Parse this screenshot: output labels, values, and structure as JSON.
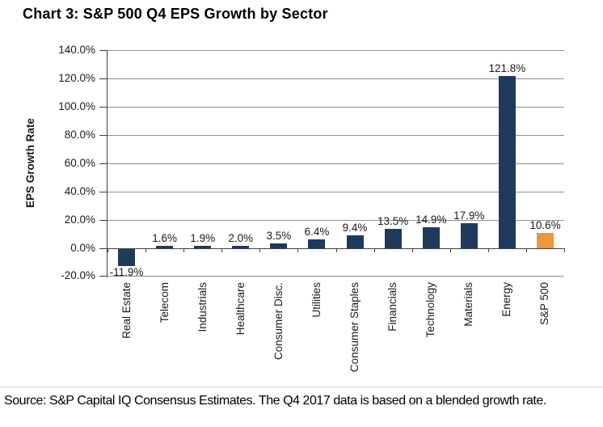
{
  "title": "Chart 3: S&P 500 Q4 EPS Growth by Sector",
  "source_note": "Source: S&P Capital IQ Consensus Estimates. The Q4 2017 data is based on a blended growth rate.",
  "chart_data": {
    "type": "bar",
    "title": "Chart 3: S&P 500 Q4 EPS Growth by Sector",
    "xlabel": "",
    "ylabel": "EPS Growth Rate",
    "categories": [
      "Real Estate",
      "Telecom",
      "Industrials",
      "Healthcare",
      "Consumer Disc.",
      "Utilities",
      "Consumer Staples",
      "Financials",
      "Technology",
      "Materials",
      "Energy",
      "S&P 500"
    ],
    "values": [
      -11.9,
      1.6,
      1.9,
      2.0,
      3.5,
      6.4,
      9.4,
      13.5,
      14.9,
      17.9,
      121.8,
      10.6
    ],
    "data_labels": [
      "-11.9%",
      "1.6%",
      "1.9%",
      "2.0%",
      "3.5%",
      "6.4%",
      "9.4%",
      "13.5%",
      "14.9%",
      "17.9%",
      "121.8%",
      "10.6%"
    ],
    "ylim": [
      -20,
      140
    ],
    "ytick_step": 20,
    "ytick_labels": [
      "140.0%",
      "120.0%",
      "100.0%",
      "80.0%",
      "60.0%",
      "40.0%",
      "20.0%",
      "0.0%",
      "-20.0%"
    ],
    "grid": true,
    "legend": "none",
    "colors": {
      "bar_default": "#1F3A5C",
      "bar_highlight": "#EF9641",
      "gridline": "#909090",
      "axis": "#404040",
      "text": "#1a1a1a"
    },
    "highlight_index": 11
  }
}
